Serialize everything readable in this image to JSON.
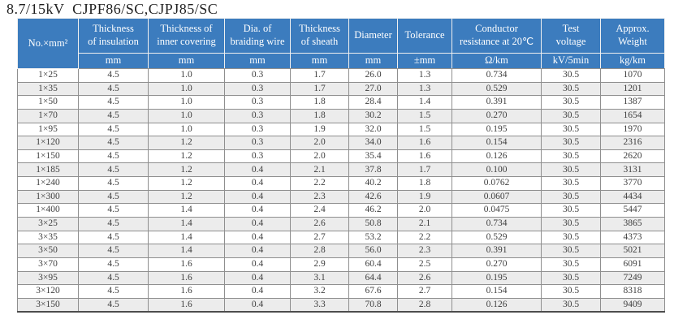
{
  "title": "8.7/15kV  CJPF86/SC,CJPJ85/SC",
  "colors": {
    "header_bg": "#3c7cbe",
    "header_text": "#ffffff",
    "stripe_bg": "#ececec",
    "grid_border": "#8f8f8f",
    "body_text": "#3f3f3f"
  },
  "table": {
    "columns": [
      {
        "label": "No.×mm²",
        "unit": ""
      },
      {
        "label": "Thickness\nof insulation",
        "unit": "mm"
      },
      {
        "label": "Thickness of\ninner covering",
        "unit": "mm"
      },
      {
        "label": "Dia. of\nbraiding wire",
        "unit": "mm"
      },
      {
        "label": "Thickness\nof sheath",
        "unit": "mm"
      },
      {
        "label": "Diameter",
        "unit": "mm"
      },
      {
        "label": "Tolerance",
        "unit": "±mm"
      },
      {
        "label": "Conductor\nresistance at 20℃",
        "unit": "Ω/km"
      },
      {
        "label": "Test\nvoltage",
        "unit": "kV/5min"
      },
      {
        "label": "Approx.\nWeight",
        "unit": "kg/km"
      }
    ],
    "rows": [
      [
        "1×25",
        "4.5",
        "1.0",
        "0.3",
        "1.7",
        "26.0",
        "1.3",
        "0.734",
        "30.5",
        "1070"
      ],
      [
        "1×35",
        "4.5",
        "1.0",
        "0.3",
        "1.7",
        "27.0",
        "1.3",
        "0.529",
        "30.5",
        "1201"
      ],
      [
        "1×50",
        "4.5",
        "1.0",
        "0.3",
        "1.8",
        "28.4",
        "1.4",
        "0.391",
        "30.5",
        "1387"
      ],
      [
        "1×70",
        "4.5",
        "1.0",
        "0.3",
        "1.8",
        "30.2",
        "1.5",
        "0.270",
        "30.5",
        "1654"
      ],
      [
        "1×95",
        "4.5",
        "1.0",
        "0.3",
        "1.9",
        "32.0",
        "1.5",
        "0.195",
        "30.5",
        "1970"
      ],
      [
        "1×120",
        "4.5",
        "1.2",
        "0.3",
        "2.0",
        "34.0",
        "1.6",
        "0.154",
        "30.5",
        "2316"
      ],
      [
        "1×150",
        "4.5",
        "1.2",
        "0.3",
        "2.0",
        "35.4",
        "1.6",
        "0.126",
        "30.5",
        "2620"
      ],
      [
        "1×185",
        "4.5",
        "1.2",
        "0.4",
        "2.1",
        "37.8",
        "1.7",
        "0.100",
        "30.5",
        "3131"
      ],
      [
        "1×240",
        "4.5",
        "1.2",
        "0.4",
        "2.2",
        "40.2",
        "1.8",
        "0.0762",
        "30.5",
        "3770"
      ],
      [
        "1×300",
        "4.5",
        "1.2",
        "0.4",
        "2.3",
        "42.6",
        "1.9",
        "0.0607",
        "30.5",
        "4434"
      ],
      [
        "1×400",
        "4.5",
        "1.4",
        "0.4",
        "2.4",
        "46.2",
        "2.0",
        "0.0475",
        "30.5",
        "5447"
      ],
      [
        "3×25",
        "4.5",
        "1.4",
        "0.4",
        "2.6",
        "50.8",
        "2.1",
        "0.734",
        "30.5",
        "3865"
      ],
      [
        "3×35",
        "4.5",
        "1.4",
        "0.4",
        "2.7",
        "53.2",
        "2.2",
        "0.529",
        "30.5",
        "4373"
      ],
      [
        "3×50",
        "4.5",
        "1.4",
        "0.4",
        "2.8",
        "56.0",
        "2.3",
        "0.391",
        "30.5",
        "5021"
      ],
      [
        "3×70",
        "4.5",
        "1.6",
        "0.4",
        "2.9",
        "60.4",
        "2.5",
        "0.270",
        "30.5",
        "6091"
      ],
      [
        "3×95",
        "4.5",
        "1.6",
        "0.4",
        "3.1",
        "64.4",
        "2.6",
        "0.195",
        "30.5",
        "7249"
      ],
      [
        "3×120",
        "4.5",
        "1.6",
        "0.4",
        "3.2",
        "67.6",
        "2.7",
        "0.154",
        "30.5",
        "8318"
      ],
      [
        "3×150",
        "4.5",
        "1.6",
        "0.4",
        "3.3",
        "70.8",
        "2.8",
        "0.126",
        "30.5",
        "9409"
      ]
    ]
  }
}
